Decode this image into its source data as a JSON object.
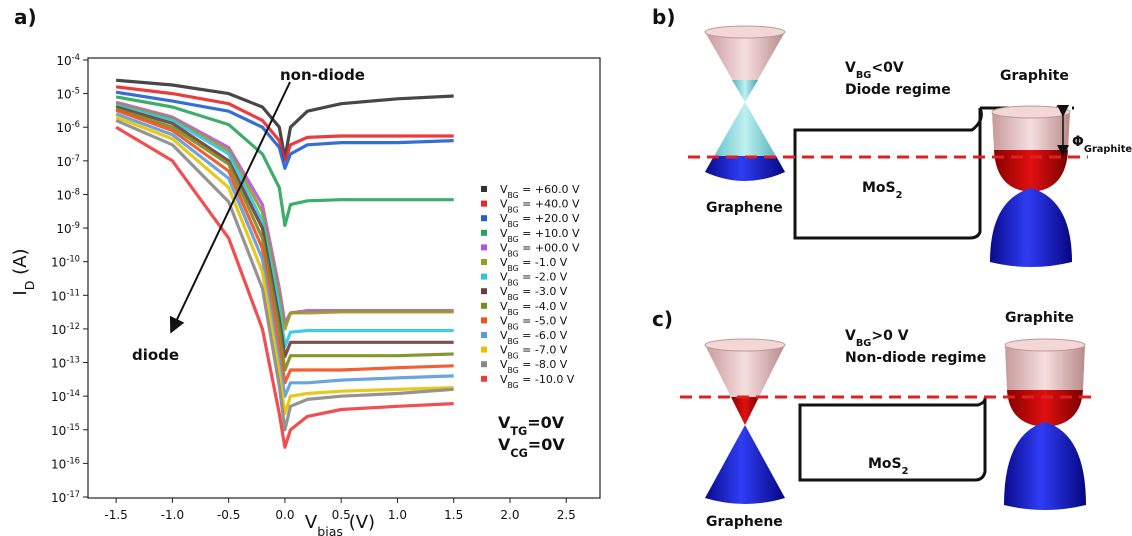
{
  "chart_data": {
    "type": "line",
    "panel_label": "a)",
    "x_label": "V_{bias} (V)",
    "y_label": "I_{D} (A)",
    "log_y": true,
    "xlim": [
      -1.75,
      2.8
    ],
    "ylim": [
      1e-17,
      0.0001
    ],
    "xticks": [
      -1.5,
      {
        "value": -1,
        "label": "-1.0"
      },
      -0.5,
      {
        "value": 0,
        "label": "0.0"
      },
      0.5,
      {
        "value": 1,
        "label": "1.0"
      },
      1.5,
      {
        "value": 2,
        "label": "2.0"
      },
      2.5
    ],
    "yticks": [
      {
        "value": 1e-17,
        "label": "10^{-17}"
      },
      {
        "value": 1e-16,
        "label": "10^{-16}"
      },
      {
        "value": 1e-15,
        "label": "10^{-15}"
      },
      {
        "value": 1e-14,
        "label": "10^{-14}"
      },
      {
        "value": 1e-13,
        "label": "10^{-13}"
      },
      {
        "value": 1e-12,
        "label": "10^{-12}"
      },
      {
        "value": 1e-11,
        "label": "10^{-11}"
      },
      {
        "value": 1e-10,
        "label": "10^{-10}"
      },
      {
        "value": 1e-09,
        "label": "10^{-9}"
      },
      {
        "value": 1e-08,
        "label": "10^{-8}"
      },
      {
        "value": 1e-07,
        "label": "10^{-7}"
      },
      {
        "value": 1e-06,
        "label": "10^{-6}"
      },
      {
        "value": 1e-05,
        "label": "10^{-5}"
      },
      {
        "value": 0.0001,
        "label": "10^{-4}"
      }
    ],
    "x": [
      -1.5,
      -1,
      -0.5,
      -0.2,
      -0.05,
      0,
      0.05,
      0.2,
      0.5,
      1,
      1.5
    ],
    "series": [
      {
        "name": "V_{BG} = +60.0 V",
        "color": "#333333",
        "values": [
          2.5e-05,
          1.8e-05,
          1e-05,
          4e-06,
          1e-06,
          1.2e-07,
          1e-06,
          3e-06,
          5e-06,
          7e-06,
          8.5e-06
        ]
      },
      {
        "name": "V_{BG} = +40.0 V",
        "color": "#e8262a",
        "values": [
          1.6e-05,
          1e-05,
          5e-06,
          1.6e-06,
          4e-07,
          1e-07,
          3e-07,
          5e-07,
          5.5e-07,
          5.5e-07,
          5.5e-07
        ]
      },
      {
        "name": "V_{BG} = +20.0 V",
        "color": "#1f5fd1",
        "values": [
          1.1e-05,
          6e-06,
          3e-06,
          1e-06,
          2.5e-07,
          6e-08,
          1.6e-07,
          3e-07,
          3.5e-07,
          3.5e-07,
          4e-07
        ]
      },
      {
        "name": "V_{BG} = +10.0 V",
        "color": "#27a45a",
        "values": [
          8e-06,
          4e-06,
          1.2e-06,
          1.6e-07,
          1.6e-08,
          1.2e-09,
          5e-09,
          6.5e-09,
          7e-09,
          7e-09,
          7e-09
        ]
      },
      {
        "name": "V_{BG} = +00.0 V",
        "color": "#b155e0",
        "values": [
          5.5e-06,
          2e-06,
          2.5e-07,
          5e-09,
          1.6e-11,
          1.5e-12,
          3e-12,
          3.5e-12,
          3.5e-12,
          3.5e-12,
          3.5e-12
        ]
      },
      {
        "name": "V_{BG} = -1.0 V",
        "color": "#9a9a1e",
        "values": [
          5e-06,
          1.8e-06,
          2e-07,
          3e-09,
          1e-11,
          1e-12,
          3e-12,
          3e-12,
          3.2e-12,
          3.2e-12,
          3.2e-12
        ]
      },
      {
        "name": "V_{BG} = -2.0 V",
        "color": "#2ec4e6",
        "values": [
          4.5e-06,
          1.6e-06,
          1.6e-07,
          1.6e-09,
          5e-12,
          3e-13,
          8e-13,
          9e-13,
          9e-13,
          9e-13,
          9e-13
        ]
      },
      {
        "name": "V_{BG} = -3.0 V",
        "color": "#6e3c3c",
        "values": [
          4e-06,
          1.3e-06,
          1e-07,
          1e-09,
          2e-12,
          1.5e-13,
          4e-13,
          4e-13,
          4e-13,
          4e-13,
          4e-13
        ]
      },
      {
        "name": "V_{BG} = -4.0 V",
        "color": "#7a8c1a",
        "values": [
          3.5e-06,
          1e-06,
          8e-08,
          5e-10,
          1e-12,
          6e-14,
          1.6e-13,
          1.6e-13,
          1.6e-13,
          1.6e-13,
          1.8e-13
        ]
      },
      {
        "name": "V_{BG} = -5.0 V",
        "color": "#f24e1e",
        "values": [
          3.2e-06,
          8e-07,
          5e-08,
          2.5e-10,
          3e-13,
          2.5e-14,
          6e-14,
          6e-14,
          6e-14,
          7e-14,
          8e-14
        ]
      },
      {
        "name": "V_{BG} = -6.0 V",
        "color": "#5b9bd5",
        "values": [
          2.5e-06,
          6e-07,
          3e-08,
          1.2e-10,
          1.2e-13,
          1e-14,
          2.5e-14,
          2.5e-14,
          3e-14,
          3.5e-14,
          4e-14
        ]
      },
      {
        "name": "V_{BG} = -7.0 V",
        "color": "#e6c200",
        "values": [
          2e-06,
          4.5e-07,
          1.6e-08,
          5e-11,
          5e-14,
          3e-15,
          1e-14,
          1.2e-14,
          1.4e-14,
          1.6e-14,
          1.8e-14
        ]
      },
      {
        "name": "V_{BG} = -8.0 V",
        "color": "#888888",
        "values": [
          1.6e-06,
          3e-07,
          6e-09,
          1.6e-11,
          2e-14,
          1e-15,
          5e-15,
          8e-15,
          1e-14,
          1.2e-14,
          1.6e-14
        ]
      },
      {
        "name": "V_{BG} = -10.0 V",
        "color": "#f03c3c",
        "values": [
          1e-06,
          1e-07,
          5e-10,
          1e-12,
          3e-15,
          3e-16,
          1e-15,
          2.5e-15,
          4e-15,
          5e-15,
          6e-15
        ]
      }
    ],
    "annotations": {
      "non_diode": "non-diode",
      "diode": "diode",
      "vtg": "V_{TG}=0V",
      "vcg": "V_{CG}=0V"
    }
  },
  "panel_b": {
    "label": "b)",
    "condition": "V_{BG}<0V",
    "regime": "Diode regime",
    "graphite": "Graphite",
    "phi": "Φ_{Graphite}",
    "mos2": "MoS_{2}",
    "graphene": "Graphene"
  },
  "panel_c": {
    "label": "c)",
    "condition": "V_{BG}>0 V",
    "regime": "Non-diode regime",
    "graphite": "Graphite",
    "mos2": "MoS_{2}",
    "graphene": "Graphene"
  }
}
